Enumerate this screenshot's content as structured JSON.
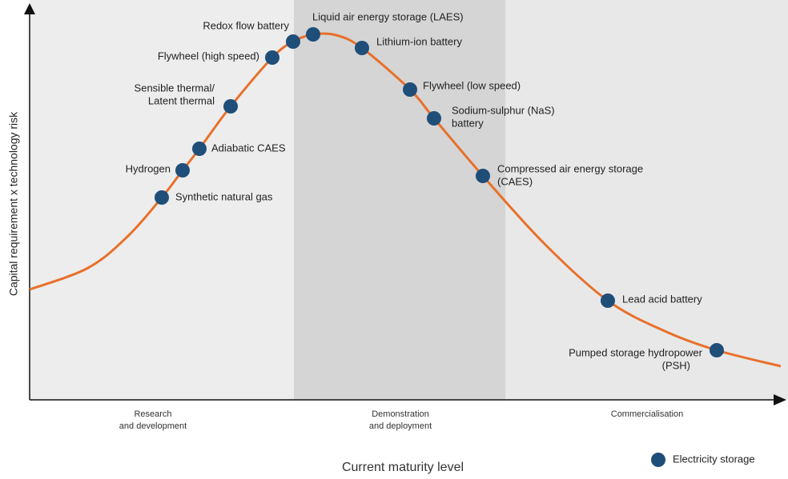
{
  "diagram": {
    "y_axis_label": "Capital requirement x technology risk",
    "x_axis_label": "Current maturity level",
    "phases": [
      {
        "lines": [
          "Research",
          "and development"
        ]
      },
      {
        "lines": [
          "Demonstration",
          "and deployment"
        ]
      },
      {
        "lines": [
          "Commercialisation"
        ]
      }
    ],
    "nodes": [
      {
        "lines": [
          "Synthetic natural gas"
        ]
      },
      {
        "lines": [
          "Hydrogen"
        ]
      },
      {
        "lines": [
          "Adiabatic CAES"
        ]
      },
      {
        "lines": [
          "Sensible thermal/",
          "Latent thermal"
        ]
      },
      {
        "lines": [
          "Flywheel (high speed)"
        ]
      },
      {
        "lines": [
          "Redox flow battery"
        ]
      },
      {
        "lines": [
          "Liquid air energy storage (LAES)"
        ]
      },
      {
        "lines": [
          "Lithium-ion battery"
        ]
      },
      {
        "lines": [
          "Flywheel (low speed)"
        ]
      },
      {
        "lines": [
          "Sodium-sulphur (NaS)",
          "battery"
        ]
      },
      {
        "lines": [
          "Compressed air energy storage",
          "(CAES)"
        ]
      },
      {
        "lines": [
          "Lead acid battery"
        ]
      },
      {
        "lines": [
          "Pumped storage hydropower",
          "(PSH)"
        ]
      }
    ],
    "legend": {
      "label": "Electricity storage"
    }
  }
}
